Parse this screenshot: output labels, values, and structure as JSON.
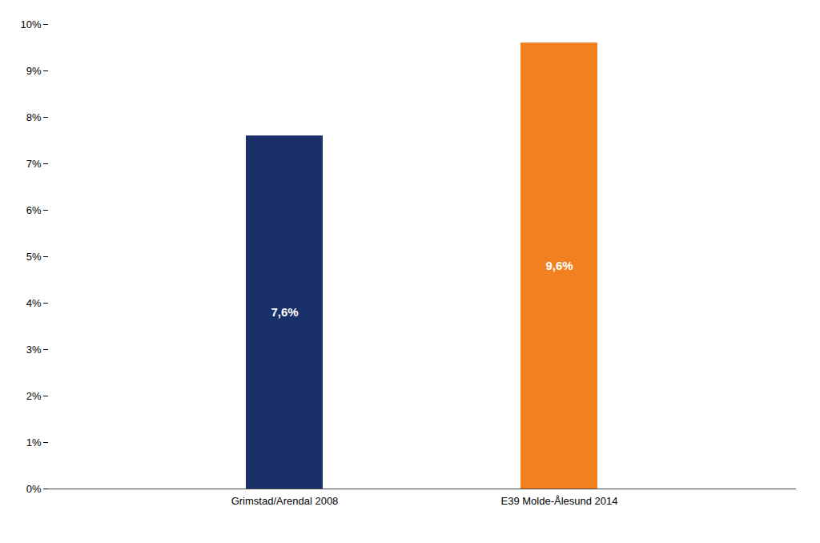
{
  "chart_data": {
    "type": "bar",
    "categories": [
      "Grimstad/Arendal 2008",
      "E39 Molde-Ålesund 2014"
    ],
    "values": [
      7.6,
      9.6
    ],
    "value_labels": [
      "7,6%",
      "9,6%"
    ],
    "colors": [
      "#1a3068",
      "#f28020"
    ],
    "data_labels": true,
    "ylim": [
      0,
      10
    ],
    "yticks": [
      {
        "value": 0,
        "label": "0%"
      },
      {
        "value": 1,
        "label": "1%"
      },
      {
        "value": 2,
        "label": "2%"
      },
      {
        "value": 3,
        "label": "3%"
      },
      {
        "value": 4,
        "label": "4%"
      },
      {
        "value": 5,
        "label": "5%"
      },
      {
        "value": 6,
        "label": "6%"
      },
      {
        "value": 7,
        "label": "7%"
      },
      {
        "value": 8,
        "label": "8%"
      },
      {
        "value": 9,
        "label": "9%"
      },
      {
        "value": 10,
        "label": "10%"
      }
    ],
    "grid": false
  }
}
